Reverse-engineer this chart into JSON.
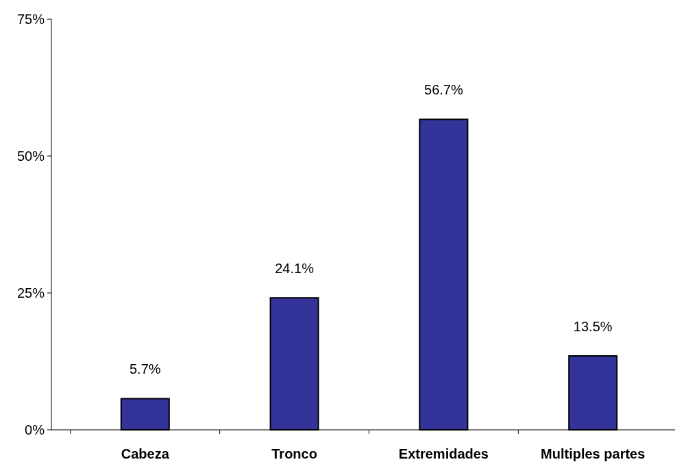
{
  "chart_data": {
    "type": "bar",
    "categories": [
      "Cabeza",
      "Tronco",
      "Extremidades",
      "Multiples partes"
    ],
    "values": [
      5.7,
      24.1,
      56.7,
      13.5
    ],
    "value_labels": [
      "5.7%",
      "24.1%",
      "56.7%",
      "13.5%"
    ],
    "color": "#333399",
    "ylim": [
      0,
      75
    ],
    "yticks": [
      {
        "value": 0,
        "label": "0%"
      },
      {
        "value": 25,
        "label": "25%"
      },
      {
        "value": 50,
        "label": "50%"
      },
      {
        "value": 75,
        "label": "75%"
      }
    ],
    "grid": false
  }
}
